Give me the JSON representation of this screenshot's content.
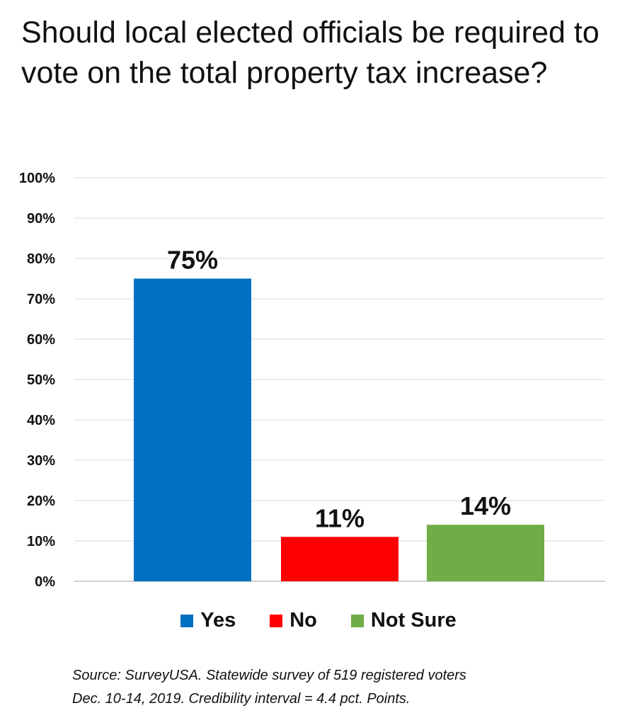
{
  "chart_data": {
    "type": "bar",
    "title": "Should local elected officials be required to vote on the total property tax increase?",
    "categories": [
      "Yes",
      "No",
      "Not Sure"
    ],
    "values": [
      75,
      11,
      14
    ],
    "data_labels": [
      "75%",
      "11%",
      "14%"
    ],
    "colors": [
      "#0070C0",
      "#FF0000",
      "#70AD47"
    ],
    "ylim": [
      0,
      100
    ],
    "yticks": [
      "0%",
      "10%",
      "20%",
      "30%",
      "40%",
      "50%",
      "60%",
      "70%",
      "80%",
      "90%",
      "100%"
    ],
    "grid": true,
    "legend_position": "bottom",
    "xlabel": "",
    "ylabel": ""
  },
  "footer": {
    "source_line1": "Source: SurveyUSA. Statewide survey of 519 registered voters",
    "source_line2": "Dec. 10-14, 2019. Credibility interval = 4.4 pct. Points."
  }
}
